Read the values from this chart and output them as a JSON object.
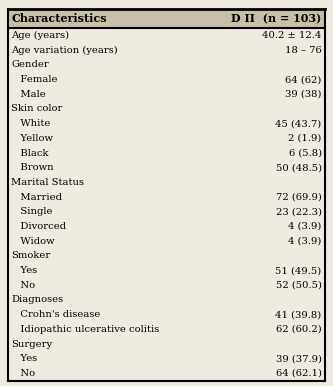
{
  "header": [
    "Characteristics",
    "D II  (n = 103)"
  ],
  "rows": [
    [
      "Age (years)",
      "40.2 ± 12.4"
    ],
    [
      "Age variation (years)",
      "18 – 76"
    ],
    [
      "Gender",
      ""
    ],
    [
      "   Female",
      "64 (62)"
    ],
    [
      "   Male",
      "39 (38)"
    ],
    [
      "Skin color",
      ""
    ],
    [
      "   White",
      "45 (43.7)"
    ],
    [
      "   Yellow",
      "2 (1.9)"
    ],
    [
      "   Black",
      "6 (5.8)"
    ],
    [
      "   Brown",
      "50 (48.5)"
    ],
    [
      "Marital Status",
      ""
    ],
    [
      "   Married",
      "72 (69.9)"
    ],
    [
      "   Single",
      "23 (22.3)"
    ],
    [
      "   Divorced",
      "4 (3.9)"
    ],
    [
      "   Widow",
      "4 (3.9)"
    ],
    [
      "Smoker",
      ""
    ],
    [
      "   Yes",
      "51 (49.5)"
    ],
    [
      "   No",
      "52 (50.5)"
    ],
    [
      "Diagnoses",
      ""
    ],
    [
      "   Crohn's disease",
      "41 (39.8)"
    ],
    [
      "   Idiopathic ulcerative colitis",
      "62 (60.2)"
    ],
    [
      "Surgery",
      ""
    ],
    [
      "   Yes",
      "39 (37.9)"
    ],
    [
      "   No",
      "64 (62.1)"
    ]
  ],
  "bg_color": "#f0ebe0",
  "header_bg": "#c8bfa8",
  "font_size": 7.2,
  "header_font_size": 8.0
}
